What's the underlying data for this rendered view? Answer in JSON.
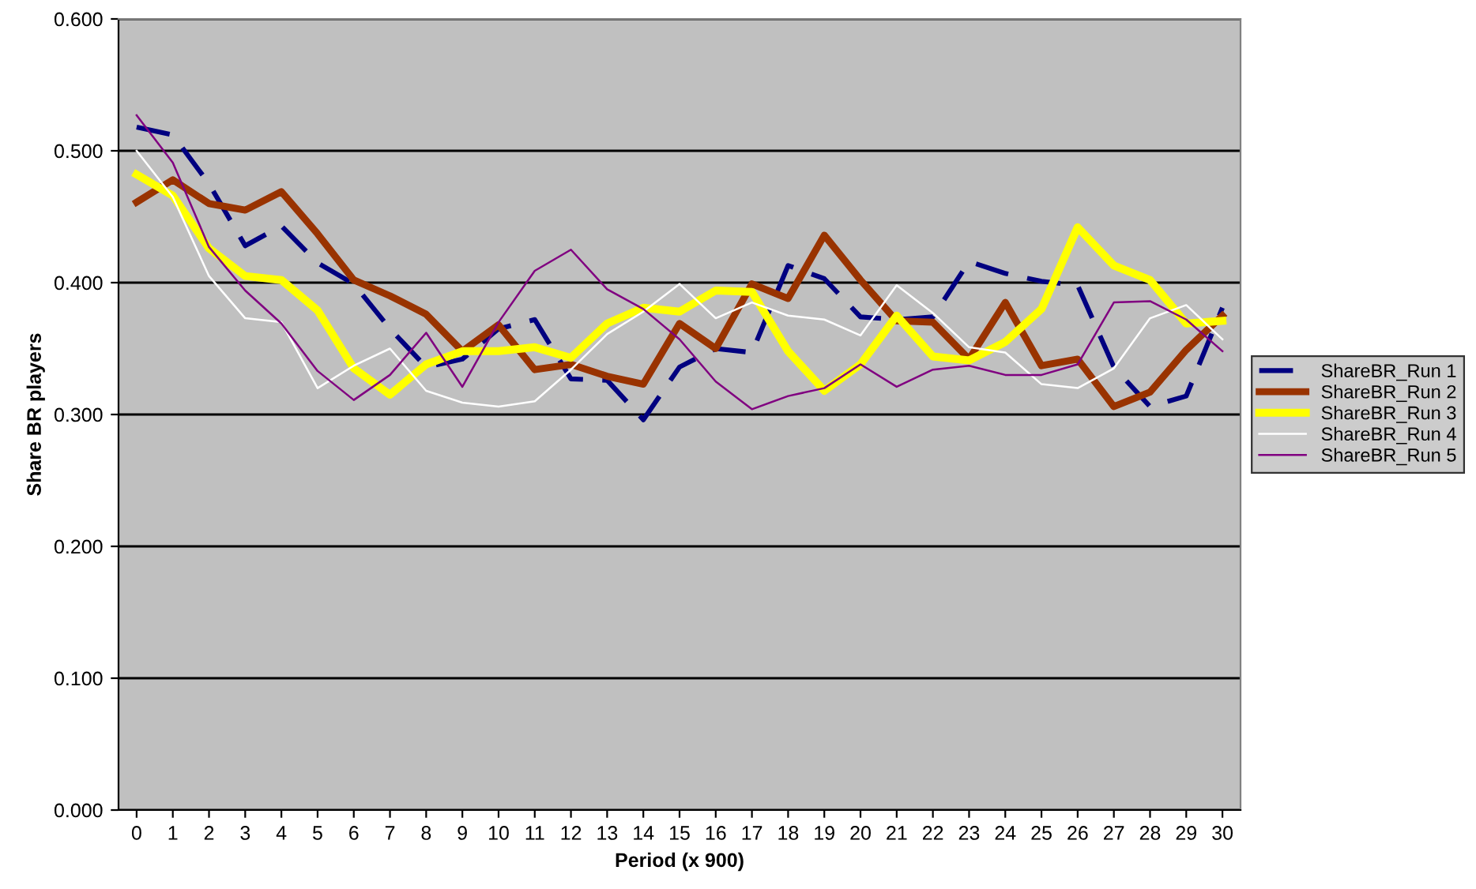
{
  "chart_data": {
    "type": "line",
    "xlabel": "Period (x 900)",
    "ylabel": "Share BR players",
    "categories": [
      "0",
      "1",
      "2",
      "3",
      "4",
      "5",
      "6",
      "7",
      "8",
      "9",
      "10",
      "11",
      "12",
      "13",
      "14",
      "15",
      "16",
      "17",
      "18",
      "19",
      "20",
      "21",
      "22",
      "23",
      "24",
      "25",
      "26",
      "27",
      "28",
      "29",
      "30"
    ],
    "ylim": [
      0,
      0.6
    ],
    "yticks": [
      {
        "value": 0,
        "label": "0.000"
      },
      {
        "value": 0.1,
        "label": "0.100"
      },
      {
        "value": 0.2,
        "label": "0.200"
      },
      {
        "value": 0.3,
        "label": "0.300"
      },
      {
        "value": 0.4,
        "label": "0.400"
      },
      {
        "value": 0.5,
        "label": "0.500"
      },
      {
        "value": 0.6,
        "label": "0.600"
      }
    ],
    "grid": "y",
    "legend": "right",
    "marker": "none",
    "series": [
      {
        "name": "ShareBR_Run 1",
        "color": "#000080",
        "line_style": "dashed",
        "values": [
          0.518,
          0.512,
          0.475,
          0.428,
          0.443,
          0.415,
          0.399,
          0.365,
          0.336,
          0.342,
          0.365,
          0.372,
          0.327,
          0.326,
          0.296,
          0.336,
          0.35,
          0.347,
          0.413,
          0.403,
          0.374,
          0.372,
          0.374,
          0.416,
          0.407,
          0.401,
          0.398,
          0.336,
          0.306,
          0.314,
          0.381
        ]
      },
      {
        "name": "ShareBR_Run 2",
        "color": "#993300",
        "line_style": "solid",
        "values": [
          0.461,
          0.478,
          0.46,
          0.455,
          0.469,
          0.437,
          0.402,
          0.39,
          0.376,
          0.348,
          0.368,
          0.334,
          0.338,
          0.329,
          0.323,
          0.369,
          0.35,
          0.399,
          0.388,
          0.436,
          0.402,
          0.371,
          0.37,
          0.342,
          0.385,
          0.337,
          0.342,
          0.306,
          0.317,
          0.349,
          0.375
        ]
      },
      {
        "name": "ShareBR_Run 3",
        "color": "#ffff00",
        "line_style": "solid",
        "values": [
          0.482,
          0.466,
          0.426,
          0.405,
          0.402,
          0.379,
          0.335,
          0.315,
          0.338,
          0.348,
          0.348,
          0.351,
          0.343,
          0.369,
          0.381,
          0.378,
          0.394,
          0.393,
          0.348,
          0.318,
          0.338,
          0.375,
          0.344,
          0.341,
          0.355,
          0.38,
          0.442,
          0.413,
          0.402,
          0.369,
          0.371
        ]
      },
      {
        "name": "ShareBR_Run 4",
        "color": "#ffffff",
        "line_style": "solid",
        "values": [
          0.5,
          0.465,
          0.405,
          0.373,
          0.37,
          0.32,
          0.337,
          0.35,
          0.318,
          0.309,
          0.306,
          0.31,
          0.334,
          0.361,
          0.378,
          0.399,
          0.373,
          0.385,
          0.375,
          0.372,
          0.36,
          0.398,
          0.377,
          0.351,
          0.347,
          0.323,
          0.32,
          0.335,
          0.373,
          0.383,
          0.357
        ]
      },
      {
        "name": "ShareBR_Run 5",
        "color": "#800080",
        "line_style": "solid",
        "values": [
          0.527,
          0.491,
          0.427,
          0.394,
          0.369,
          0.333,
          0.311,
          0.33,
          0.362,
          0.321,
          0.37,
          0.409,
          0.425,
          0.395,
          0.38,
          0.357,
          0.325,
          0.304,
          0.314,
          0.32,
          0.338,
          0.321,
          0.334,
          0.337,
          0.33,
          0.33,
          0.338,
          0.385,
          0.386,
          0.372,
          0.348
        ]
      }
    ]
  }
}
